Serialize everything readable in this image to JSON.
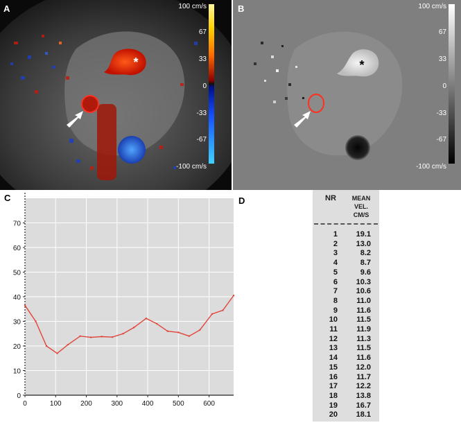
{
  "panel_a": {
    "label": "A",
    "scale_labels": [
      "100 cm/s",
      "67",
      "33",
      "0",
      "-33",
      "-67",
      "-100 cm/s"
    ]
  },
  "panel_b": {
    "label": "B",
    "scale_labels": [
      "100 cm/s",
      "67",
      "33",
      "0",
      "-33",
      "-67",
      "-100 cm/s"
    ]
  },
  "panel_c": {
    "label": "C"
  },
  "panel_d": {
    "label": "D",
    "header_nr": "NR",
    "header_mean": [
      "MEAN",
      "VEL.",
      "CM/S"
    ],
    "rows": [
      {
        "nr": "1",
        "val": "19.1"
      },
      {
        "nr": "2",
        "val": "13.0"
      },
      {
        "nr": "3",
        "val": "8.2"
      },
      {
        "nr": "4",
        "val": "8.7"
      },
      {
        "nr": "5",
        "val": "9.6"
      },
      {
        "nr": "6",
        "val": "10.3"
      },
      {
        "nr": "7",
        "val": "10.6"
      },
      {
        "nr": "8",
        "val": "11.0"
      },
      {
        "nr": "9",
        "val": "11.6"
      },
      {
        "nr": "10",
        "val": "11.5"
      },
      {
        "nr": "11",
        "val": "11.9"
      },
      {
        "nr": "12",
        "val": "11.3"
      },
      {
        "nr": "13",
        "val": "11.5"
      },
      {
        "nr": "14",
        "val": "11.6"
      },
      {
        "nr": "15",
        "val": "12.0"
      },
      {
        "nr": "16",
        "val": "11.7"
      },
      {
        "nr": "17",
        "val": "12.2"
      },
      {
        "nr": "18",
        "val": "13.8"
      },
      {
        "nr": "19",
        "val": "16.7"
      },
      {
        "nr": "20",
        "val": "18.1"
      }
    ]
  },
  "chart_data": {
    "type": "line",
    "x": [
      0,
      35,
      70,
      105,
      140,
      180,
      215,
      250,
      285,
      320,
      355,
      395,
      430,
      465,
      500,
      535,
      570,
      610,
      645,
      680
    ],
    "series": [
      {
        "values": [
          36.5,
          30,
          20,
          17,
          20.5,
          24,
          23.5,
          23.8,
          23.6,
          25,
          27.5,
          31.2,
          29,
          26,
          25.5,
          24,
          26.5,
          33,
          34.5,
          40.5
        ]
      }
    ],
    "xlim": [
      0,
      680
    ],
    "ylim": [
      0,
      80
    ],
    "xticks": [
      0,
      100,
      200,
      300,
      400,
      500,
      600
    ],
    "yticks": [
      0,
      10,
      20,
      30,
      40,
      50,
      60,
      70
    ],
    "grid": true,
    "line_color": "#e0453a",
    "background_color": "#dcdcdc"
  }
}
